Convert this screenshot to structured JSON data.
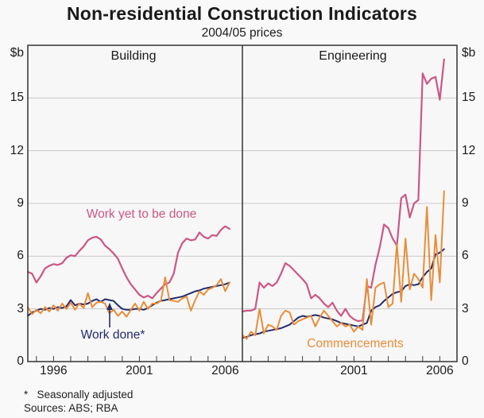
{
  "title": "Non-residential Construction Indicators",
  "subtitle": "2004/05 prices",
  "unit_label": "$b",
  "footnote": "*   Seasonally adjusted",
  "sources": "Sources: ABS; RBA",
  "colors": {
    "work_yet_to_be_done": "#cc5687",
    "work_done": "#232b6e",
    "commencements": "#e98d38",
    "grid": "#c8c8c8",
    "frame": "#3f3f3f",
    "plot_bg": "#f7f7f7"
  },
  "axes": {
    "ylim": [
      0,
      18
    ],
    "y_ticks": [
      0,
      3,
      6,
      9,
      12,
      15
    ],
    "x_domain": [
      1994.5,
      2007
    ],
    "year_tick_start": 1995,
    "year_tick_end": 2006,
    "grid": "horizontal-only"
  },
  "chart_data": [
    {
      "type": "line",
      "title": "Building",
      "x_start": 1994.5,
      "x_step": 0.25,
      "x_labels": [
        {
          "year": 1996,
          "label": "1996"
        },
        {
          "year": 2001,
          "label": "2001"
        },
        {
          "year": 2006,
          "label": "2006"
        }
      ],
      "series": [
        {
          "name": "Work yet to be done",
          "color_key": "work_yet_to_be_done",
          "values": [
            5.1,
            5.0,
            4.5,
            4.85,
            5.3,
            5.45,
            5.55,
            5.5,
            5.6,
            5.9,
            6.05,
            6.0,
            6.3,
            6.55,
            6.9,
            7.05,
            7.1,
            6.95,
            6.6,
            6.4,
            6.15,
            5.85,
            5.3,
            4.8,
            4.4,
            4.1,
            3.8,
            3.65,
            3.75,
            3.6,
            3.9,
            4.15,
            4.4,
            4.5,
            5.0,
            6.2,
            6.75,
            7.0,
            6.9,
            6.95,
            7.35,
            7.1,
            7.0,
            7.2,
            7.15,
            7.5,
            7.7,
            7.55
          ]
        },
        {
          "name": "Work done*",
          "color_key": "work_done",
          "values": [
            2.6,
            2.8,
            2.9,
            3.0,
            2.95,
            3.05,
            3.0,
            3.1,
            3.05,
            3.15,
            3.5,
            3.2,
            3.3,
            3.25,
            3.3,
            3.45,
            3.55,
            3.4,
            3.55,
            3.5,
            3.45,
            3.2,
            3.0,
            2.95,
            2.95,
            3.0,
            3.0,
            2.95,
            3.05,
            3.2,
            3.35,
            3.45,
            3.5,
            3.55,
            3.6,
            3.65,
            3.7,
            3.8,
            3.9,
            4.0,
            4.05,
            4.15,
            4.2,
            4.25,
            4.3,
            4.35,
            4.4,
            4.5
          ]
        },
        {
          "name": "Commencements",
          "color_key": "commencements",
          "values": [
            3.1,
            2.7,
            2.95,
            2.75,
            3.1,
            2.85,
            3.2,
            2.9,
            3.3,
            3.0,
            3.35,
            2.95,
            3.3,
            3.05,
            3.9,
            3.1,
            3.35,
            3.4,
            3.3,
            2.75,
            2.95,
            2.6,
            2.85,
            2.55,
            2.95,
            3.3,
            2.9,
            3.4,
            3.0,
            3.3,
            3.3,
            3.45,
            4.8,
            3.5,
            3.45,
            3.4,
            3.6,
            3.7,
            2.9,
            3.5,
            4.0,
            3.8,
            4.1,
            4.2,
            4.35,
            4.7,
            4.0,
            4.5
          ]
        }
      ]
    },
    {
      "type": "line",
      "title": "Engineering",
      "x_start": 1994.5,
      "x_step": 0.25,
      "x_labels": [
        {
          "year": 2001,
          "label": "2001"
        },
        {
          "year": 2006,
          "label": "2006"
        }
      ],
      "series": [
        {
          "name": "Work yet to be done",
          "color_key": "work_yet_to_be_done",
          "values": [
            2.85,
            2.9,
            2.9,
            3.0,
            4.5,
            4.2,
            4.45,
            4.3,
            4.5,
            5.0,
            5.6,
            5.45,
            5.2,
            4.95,
            4.7,
            4.4,
            3.6,
            3.8,
            3.6,
            3.3,
            3.1,
            3.35,
            2.9,
            2.6,
            3.0,
            2.6,
            2.4,
            2.3,
            2.35,
            4.3,
            4.2,
            5.5,
            6.5,
            7.8,
            7.6,
            7.0,
            6.6,
            9.3,
            9.5,
            8.2,
            9.0,
            9.2,
            16.4,
            15.8,
            16.1,
            16.2,
            14.9,
            17.2
          ]
        },
        {
          "name": "Work done*",
          "color_key": "work_done",
          "values": [
            1.35,
            1.4,
            1.5,
            1.55,
            1.6,
            1.7,
            1.75,
            1.8,
            1.85,
            1.9,
            2.0,
            2.1,
            2.3,
            2.5,
            2.6,
            2.55,
            2.6,
            2.65,
            2.6,
            2.5,
            2.45,
            2.4,
            2.3,
            2.2,
            2.15,
            2.1,
            2.05,
            2.0,
            2.1,
            2.2,
            2.9,
            3.1,
            3.2,
            3.45,
            3.65,
            3.85,
            3.95,
            4.0,
            4.3,
            4.4,
            4.35,
            4.4,
            4.8,
            5.1,
            5.3,
            6.1,
            6.2,
            6.4
          ]
        },
        {
          "name": "Commencements",
          "color_key": "commencements",
          "values": [
            1.5,
            1.3,
            1.7,
            1.5,
            3.0,
            1.6,
            2.1,
            2.0,
            1.8,
            2.6,
            2.9,
            2.8,
            2.1,
            2.3,
            2.4,
            2.5,
            2.6,
            2.0,
            2.5,
            2.9,
            2.6,
            2.3,
            2.0,
            2.2,
            2.0,
            2.1,
            1.7,
            2.0,
            1.8,
            4.7,
            2.1,
            4.2,
            4.4,
            4.5,
            3.1,
            3.3,
            6.7,
            3.4,
            7.0,
            4.1,
            5.0,
            4.7,
            4.2,
            8.8,
            3.5,
            7.2,
            4.5,
            9.7
          ]
        }
      ]
    }
  ]
}
